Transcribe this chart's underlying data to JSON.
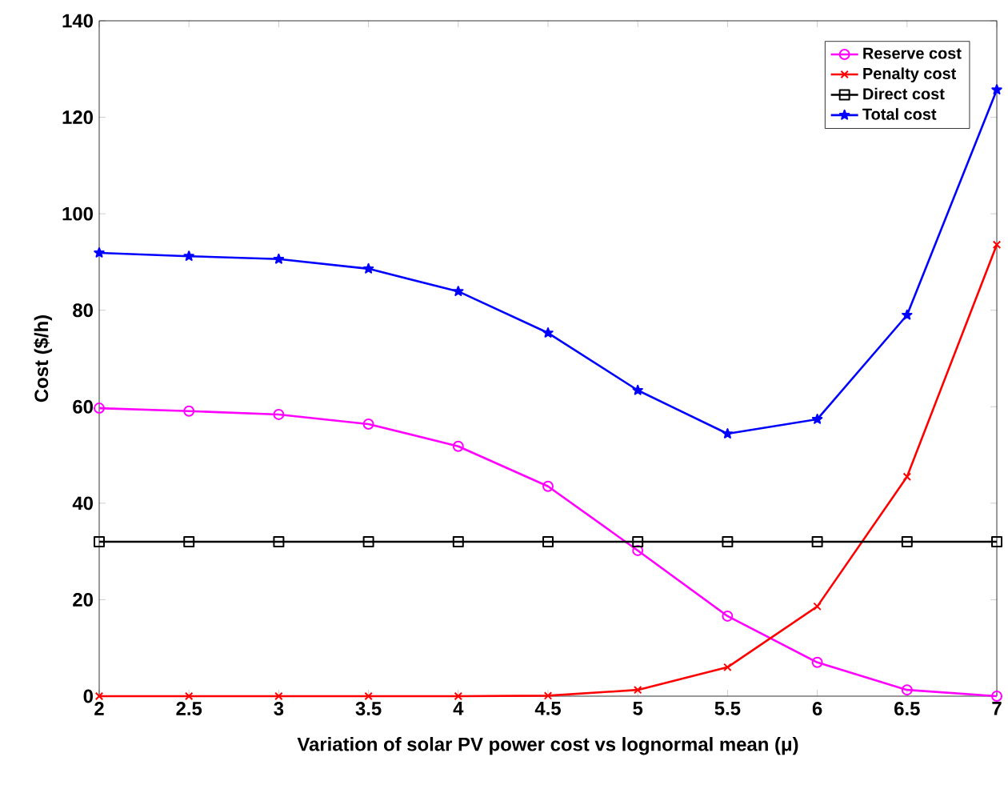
{
  "chart_data": {
    "type": "line",
    "xlabel": "Variation of solar PV power cost vs lognormal mean (μ)",
    "ylabel": "Cost ($/h)",
    "x": [
      2,
      2.5,
      3,
      3.5,
      4,
      4.5,
      5,
      5.5,
      6,
      6.5,
      7
    ],
    "series": [
      {
        "name": "Reserve cost",
        "color": "#ff00ff",
        "marker": "circle",
        "values": [
          59.7,
          59.1,
          58.4,
          56.4,
          51.8,
          43.5,
          30.2,
          16.6,
          7.0,
          1.3,
          0
        ]
      },
      {
        "name": "Penalty cost",
        "color": "#ff0000",
        "marker": "cross",
        "values": [
          0,
          0,
          0,
          0,
          0,
          0.1,
          1.3,
          6.0,
          18.6,
          45.5,
          93.6
        ]
      },
      {
        "name": "Direct cost",
        "color": "#000000",
        "marker": "square",
        "values": [
          32,
          32,
          32,
          32,
          32,
          32,
          32,
          32,
          32,
          32,
          32
        ]
      },
      {
        "name": "Total cost",
        "color": "#0000ff",
        "marker": "star",
        "values": [
          91.9,
          91.2,
          90.6,
          88.6,
          83.9,
          75.3,
          63.4,
          54.4,
          57.4,
          79.0,
          125.7
        ]
      }
    ],
    "xlim": [
      2,
      7
    ],
    "ylim": [
      0,
      140
    ],
    "xticks": [
      2,
      2.5,
      3,
      3.5,
      4,
      4.5,
      5,
      5.5,
      6,
      6.5,
      7
    ],
    "yticks": [
      0,
      20,
      40,
      60,
      80,
      100,
      120,
      140
    ],
    "grid": false,
    "legend": "top right"
  }
}
